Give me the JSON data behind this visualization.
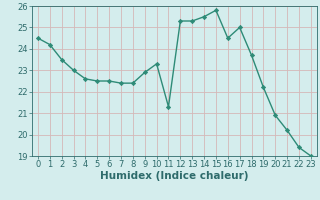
{
  "x": [
    0,
    1,
    2,
    3,
    4,
    5,
    6,
    7,
    8,
    9,
    10,
    11,
    12,
    13,
    14,
    15,
    16,
    17,
    18,
    19,
    20,
    21,
    22,
    23
  ],
  "y": [
    24.5,
    24.2,
    23.5,
    23.0,
    22.6,
    22.5,
    22.5,
    22.4,
    22.4,
    22.9,
    23.3,
    21.3,
    25.3,
    25.3,
    25.5,
    25.8,
    24.5,
    25.0,
    23.7,
    22.2,
    20.9,
    20.2,
    19.4,
    19.0
  ],
  "line_color": "#2e8b77",
  "marker": "D",
  "marker_size": 2.2,
  "linewidth": 1.0,
  "xlabel": "Humidex (Indice chaleur)",
  "xlabel_fontsize": 7.5,
  "bg_color": "#d4eded",
  "grid_color": "#d4b8b8",
  "ylim": [
    19,
    26
  ],
  "xlim": [
    -0.5,
    23.5
  ],
  "yticks": [
    19,
    20,
    21,
    22,
    23,
    24,
    25,
    26
  ],
  "xticks": [
    0,
    1,
    2,
    3,
    4,
    5,
    6,
    7,
    8,
    9,
    10,
    11,
    12,
    13,
    14,
    15,
    16,
    17,
    18,
    19,
    20,
    21,
    22,
    23
  ],
  "tick_fontsize": 6.0,
  "tick_color": "#2e6b6b"
}
